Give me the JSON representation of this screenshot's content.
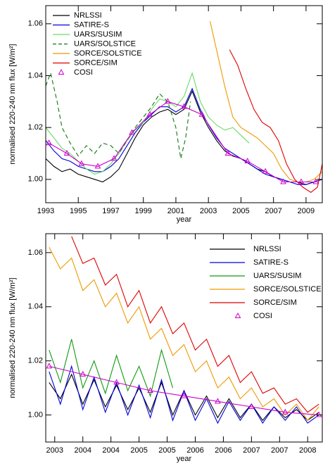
{
  "chart_data": [
    {
      "type": "line",
      "xlabel": "year",
      "ylabel": "normalised 220-240 nm flux [W/m²]",
      "xlim": [
        1993,
        2010
      ],
      "ylim": [
        0.991,
        1.067
      ],
      "xticks": [
        1993,
        1995,
        1997,
        1999,
        2001,
        2003,
        2005,
        2007,
        2009
      ],
      "yticks": [
        {
          "value": 1,
          "label": "1.00"
        },
        1.02,
        1.04,
        1.06
      ],
      "grid": false,
      "legend": "upper left",
      "series": [
        {
          "name": "NRLSSI",
          "color": "#000000",
          "x": [
            1993,
            1993.5,
            1994,
            1994.5,
            1995,
            1995.5,
            1996,
            1996.5,
            1997,
            1997.5,
            1998,
            1998.5,
            1999,
            1999.5,
            2000,
            2000.5,
            2001,
            2001.5,
            2002,
            2002.5,
            2003,
            2003.5,
            2004,
            2004.5,
            2005,
            2005.5,
            2006,
            2006.5,
            2007,
            2007.5,
            2008,
            2008.5,
            2009,
            2009.5,
            2010
          ],
          "values": [
            1.008,
            1.005,
            1.003,
            1.004,
            1.002,
            1.001,
            1.0,
            0.999,
            1.001,
            1.004,
            1.01,
            1.016,
            1.021,
            1.024,
            1.026,
            1.027,
            1.025,
            1.027,
            1.034,
            1.026,
            1.02,
            1.015,
            1.011,
            1.009,
            1.008,
            1.006,
            1.004,
            1.003,
            1.001,
            1.0,
            0.999,
            0.999,
            0.998,
            0.999,
            1.0
          ]
        },
        {
          "name": "SATIRE-S",
          "color": "#0000dd",
          "x": [
            1993,
            1993.5,
            1994,
            1994.5,
            1995,
            1995.5,
            1996,
            1996.5,
            1997,
            1997.5,
            1998,
            1998.5,
            1999,
            1999.5,
            2000,
            2000.5,
            2001,
            2001.5,
            2002,
            2002.5,
            2003,
            2003.5,
            2004,
            2004.5,
            2005,
            2005.5,
            2006,
            2006.5,
            2007,
            2007.5,
            2008,
            2008.5,
            2009,
            2009.5,
            2010
          ],
          "values": [
            1.015,
            1.011,
            1.008,
            1.007,
            1.005,
            1.004,
            1.003,
            1.003,
            1.005,
            1.008,
            1.013,
            1.018,
            1.022,
            1.025,
            1.028,
            1.028,
            1.026,
            1.028,
            1.035,
            1.027,
            1.021,
            1.016,
            1.012,
            1.01,
            1.008,
            1.006,
            1.004,
            1.002,
            1.001,
            1.0,
            0.999,
            0.998,
            0.998,
            0.999,
            1.0
          ]
        },
        {
          "name": "UARS/SUSIM",
          "color": "#66dd66",
          "x": [
            1993,
            1993.5,
            1994,
            1994.5,
            1995,
            1995.5,
            1996,
            1996.5,
            1997,
            1997.5,
            1998,
            1998.5,
            1999,
            1999.5,
            2000,
            2000.5,
            2001,
            2001.5,
            2002,
            2002.5,
            2003,
            2003.5,
            2004,
            2004.5,
            2005,
            2005.5
          ],
          "values": [
            1.02,
            1.016,
            1.012,
            1.01,
            1.007,
            1.004,
            1.002,
            1.003,
            1.006,
            1.01,
            1.015,
            1.019,
            1.022,
            1.027,
            1.031,
            1.03,
            1.028,
            1.032,
            1.041,
            1.03,
            1.024,
            1.021,
            1.019,
            1.02,
            1.017,
            1.014
          ]
        },
        {
          "name": "UARS/SOLSTICE",
          "color": "#117711",
          "dash": true,
          "x": [
            1993,
            1993.3,
            1993.7,
            1994,
            1994.5,
            1995,
            1995.5,
            1996,
            1996.5,
            1997,
            1997.5,
            1998,
            1998.5,
            1999,
            1999.5,
            2000,
            2000.5,
            2001,
            2001.3,
            2001.6,
            2001.9
          ],
          "values": [
            1.036,
            1.041,
            1.03,
            1.02,
            1.014,
            1.009,
            1.013,
            1.01,
            1.014,
            1.013,
            1.01,
            1.015,
            1.02,
            1.024,
            1.028,
            1.033,
            1.03,
            1.02,
            1.008,
            1.016,
            1.03
          ]
        },
        {
          "name": "SORCE/SOLSTICE",
          "color": "#ee9900",
          "x": [
            2003.1,
            2003.5,
            2004,
            2004.5,
            2005,
            2005.5,
            2006,
            2006.5,
            2007,
            2007.5,
            2008,
            2008.5,
            2009,
            2009.5,
            2010
          ],
          "values": [
            1.061,
            1.05,
            1.036,
            1.024,
            1.02,
            1.018,
            1.016,
            1.013,
            1.01,
            1.004,
            1.0,
            0.999,
            0.999,
            1.0,
            1.003
          ]
        },
        {
          "name": "SORCE/SIM",
          "color": "#dd0000",
          "x": [
            2004.3,
            2004.8,
            2005.3,
            2005.8,
            2006.3,
            2006.8,
            2007.3,
            2007.8,
            2008.3,
            2008.8,
            2009.3,
            2009.7,
            2010
          ],
          "values": [
            1.05,
            1.044,
            1.035,
            1.027,
            1.022,
            1.02,
            1.015,
            1.006,
            1.0,
            0.997,
            0.995,
            0.997,
            1.006
          ]
        },
        {
          "name": "COSI",
          "color": "#cc00cc",
          "marker": "triangle",
          "x": [
            1993.2,
            1994.3,
            1995.2,
            1996.2,
            1997.2,
            1998.3,
            1999.4,
            2000.5,
            2001.5,
            2002.6,
            2004.2,
            2005.4,
            2006.5,
            2007.6,
            2008.7,
            2009.6
          ],
          "values": [
            1.014,
            1.01,
            1.006,
            1.005,
            1.008,
            1.018,
            1.025,
            1.03,
            1.028,
            1.025,
            1.01,
            1.007,
            1.003,
            0.999,
            0.999,
            0.999
          ]
        }
      ]
    },
    {
      "type": "line",
      "xlabel": "year",
      "ylabel": "normalised 220-240 nm flux [W/m²]",
      "xlim": [
        2003.34,
        2008.26
      ],
      "ylim": [
        0.99,
        1.067
      ],
      "xticks": [
        {
          "value": 2003.5,
          "label": "2003"
        },
        {
          "value": 2004,
          "label": "2004"
        },
        {
          "value": 2004.5,
          "label": "2004"
        },
        {
          "value": 2005,
          "label": "2005"
        },
        {
          "value": 2005.5,
          "label": "2005"
        },
        {
          "value": 2006,
          "label": "2006"
        },
        {
          "value": 2006.5,
          "label": "2006"
        },
        {
          "value": 2007,
          "label": "2007"
        },
        {
          "value": 2007.5,
          "label": "2007"
        },
        {
          "value": 2008,
          "label": "2008"
        }
      ],
      "yticks": [
        {
          "value": 1,
          "label": "1.00"
        },
        1.02,
        1.04,
        1.06
      ],
      "grid": false,
      "legend": "upper right",
      "series": [
        {
          "name": "NRLSSI",
          "color": "#000000",
          "x": [
            2003.4,
            2003.6,
            2003.8,
            2004.0,
            2004.2,
            2004.4,
            2004.6,
            2004.8,
            2005.0,
            2005.2,
            2005.4,
            2005.6,
            2005.8,
            2006.0,
            2006.2,
            2006.4,
            2006.6,
            2006.8,
            2007.0,
            2007.2,
            2007.4,
            2007.6,
            2007.8,
            2008.0,
            2008.2
          ],
          "values": [
            1.012,
            1.006,
            1.015,
            1.004,
            1.013,
            1.003,
            1.011,
            1.002,
            1.01,
            1.001,
            1.012,
            1.0,
            1.009,
            1.0,
            1.007,
            0.999,
            1.006,
            0.999,
            1.004,
            0.998,
            1.003,
            0.999,
            1.002,
            0.998,
            1.001
          ]
        },
        {
          "name": "SATIRE-S",
          "color": "#0000dd",
          "x": [
            2003.4,
            2003.6,
            2003.8,
            2004.0,
            2004.2,
            2004.4,
            2004.6,
            2004.8,
            2005.0,
            2005.2,
            2005.4,
            2005.6,
            2005.8,
            2006.0,
            2006.2,
            2006.4,
            2006.6,
            2006.8,
            2007.0,
            2007.2,
            2007.4,
            2007.6,
            2007.8,
            2008.0,
            2008.2
          ],
          "values": [
            1.016,
            1.004,
            1.018,
            1.002,
            1.014,
            1.001,
            1.012,
            1.0,
            1.011,
            0.999,
            1.013,
            0.998,
            1.009,
            0.998,
            1.006,
            0.997,
            1.005,
            0.998,
            1.004,
            0.997,
            1.003,
            0.998,
            1.003,
            0.997,
            1.0
          ]
        },
        {
          "name": "UARS/SUSIM",
          "color": "#119911",
          "x": [
            2003.4,
            2003.6,
            2003.8,
            2004.0,
            2004.2,
            2004.4,
            2004.6,
            2004.8,
            2005.0,
            2005.2,
            2005.4,
            2005.6
          ],
          "values": [
            1.024,
            1.012,
            1.028,
            1.01,
            1.02,
            1.008,
            1.022,
            1.009,
            1.018,
            1.007,
            1.024,
            1.01
          ]
        },
        {
          "name": "SORCE/SOLSTICE",
          "color": "#ee9900",
          "x": [
            2003.4,
            2003.6,
            2003.8,
            2004.0,
            2004.2,
            2004.4,
            2004.6,
            2004.8,
            2005.0,
            2005.2,
            2005.4,
            2005.6,
            2005.8,
            2006.0,
            2006.2,
            2006.4,
            2006.6,
            2006.8,
            2007.0,
            2007.2,
            2007.4,
            2007.6,
            2007.8,
            2008.0,
            2008.2
          ],
          "values": [
            1.062,
            1.054,
            1.058,
            1.046,
            1.05,
            1.04,
            1.045,
            1.034,
            1.04,
            1.028,
            1.032,
            1.022,
            1.026,
            1.016,
            1.02,
            1.01,
            1.014,
            1.006,
            1.01,
            1.003,
            1.006,
            1.0,
            1.004,
            0.998,
            1.003
          ]
        },
        {
          "name": "SORCE/SIM",
          "color": "#dd0000",
          "x": [
            2003.8,
            2004.0,
            2004.2,
            2004.4,
            2004.6,
            2004.8,
            2005.0,
            2005.2,
            2005.4,
            2005.6,
            2005.8,
            2006.0,
            2006.2,
            2006.4,
            2006.6,
            2006.8,
            2007.0,
            2007.2,
            2007.4,
            2007.6,
            2007.8,
            2008.0,
            2008.2
          ],
          "values": [
            1.066,
            1.056,
            1.058,
            1.048,
            1.052,
            1.04,
            1.046,
            1.034,
            1.04,
            1.03,
            1.034,
            1.024,
            1.028,
            1.018,
            1.022,
            1.012,
            1.016,
            1.008,
            1.01,
            1.004,
            1.006,
            1.001,
            1.004
          ]
        },
        {
          "name": "COSI",
          "color": "#cc00cc",
          "marker": "triangle",
          "x": [
            2003.4,
            2004.0,
            2004.6,
            2005.2,
            2005.8,
            2006.4,
            2007.0,
            2007.6,
            2008.2
          ],
          "values": [
            1.018,
            1.015,
            1.012,
            1.009,
            1.007,
            1.005,
            1.003,
            1.001,
            1.0
          ]
        }
      ]
    }
  ]
}
